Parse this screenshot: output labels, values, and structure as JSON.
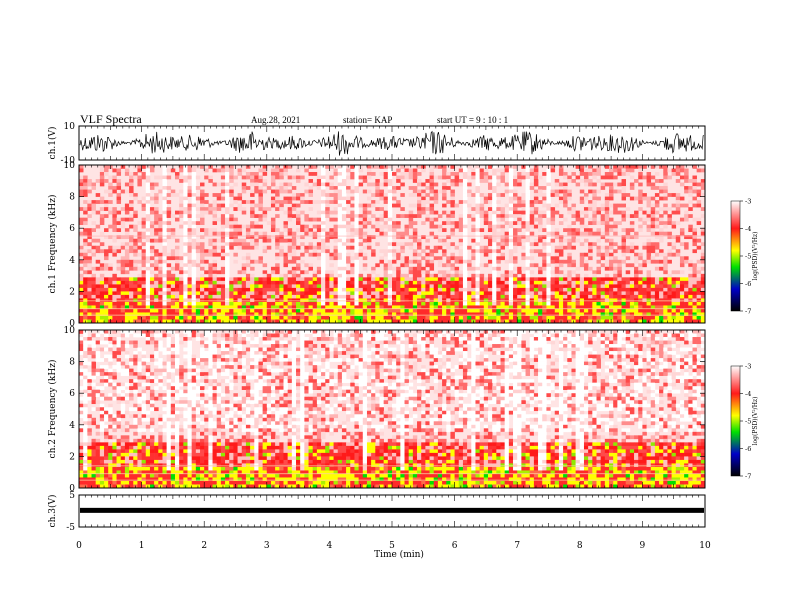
{
  "header": {
    "title": "VLF Spectra",
    "date": "Aug.28, 2021",
    "station": "station= KAP",
    "start": "start  UT =   9  : 10 : 1"
  },
  "chart_data": [
    {
      "type": "line",
      "panel": "ch1-waveform",
      "ylabel": "ch.1(V)",
      "ylim": [
        -10,
        10
      ],
      "ytick_labels": [
        "10",
        "-10"
      ]
    },
    {
      "type": "heatmap",
      "panel": "ch1-spectrogram",
      "ylabel": "ch.1 Frequency (kHz)",
      "ylim": [
        0,
        10
      ],
      "ytick_labels": [
        "10",
        "8",
        "6",
        "4",
        "2",
        "0"
      ],
      "colorbar": {
        "label": "log(PSD)(V²/Hz)",
        "range": [
          -7,
          -3
        ],
        "tick_labels": [
          "-3",
          "-4",
          "-5",
          "-6",
          "-7"
        ],
        "colors": [
          "#ffffff",
          "#ff2020",
          "#ffff00",
          "#00e000",
          "#0000c0",
          "#000000"
        ]
      }
    },
    {
      "type": "heatmap",
      "panel": "ch2-spectrogram",
      "ylabel": "ch.2 Frequency (kHz)",
      "ylim": [
        0,
        10
      ],
      "ytick_labels": [
        "10",
        "8",
        "6",
        "4",
        "2",
        "0"
      ],
      "colorbar": {
        "label": "log(PSD)(V²/Hz)",
        "range": [
          -7,
          -3
        ],
        "tick_labels": [
          "-3",
          "-4",
          "-5",
          "-6",
          "-7"
        ]
      }
    },
    {
      "type": "line",
      "panel": "ch3-waveform",
      "ylabel": "ch.3(V)",
      "ylim": [
        -5,
        5
      ],
      "ytick_labels": [
        "5",
        "-5"
      ]
    }
  ],
  "xaxis": {
    "label": "Time  (min)",
    "range": [
      0,
      10
    ],
    "tick_labels": [
      "0",
      "1",
      "2",
      "3",
      "4",
      "5",
      "6",
      "7",
      "8",
      "9",
      "10"
    ]
  }
}
